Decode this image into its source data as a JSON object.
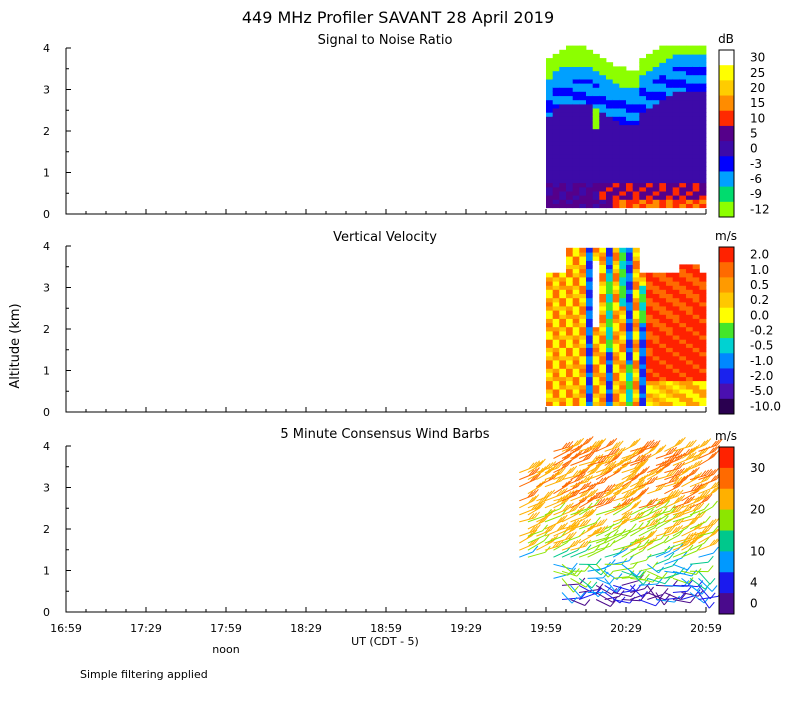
{
  "title": "449 MHz Profiler SAVANT 28 April 2019",
  "ylabel": "Altitude (km)",
  "xlabel": "UT  (CDT - 5)",
  "noon_label": "noon",
  "footer": "Simple filtering applied",
  "x_ticks": [
    "16:59",
    "17:29",
    "17:59",
    "18:29",
    "18:59",
    "19:29",
    "19:59",
    "20:29",
    "20:59"
  ],
  "chart_data": [
    {
      "type": "heatmap",
      "title": "Signal to Noise Ratio",
      "unit": "dB",
      "y_ticks": [
        "0",
        "1",
        "2",
        "3",
        "4"
      ],
      "ylim": [
        0,
        4
      ],
      "data_time_range": [
        "19:59",
        "20:59"
      ],
      "colorbar": {
        "labels": [
          "30",
          "25",
          "20",
          "15",
          "10",
          "5",
          "0",
          "-3",
          "-6",
          "-9",
          "-12"
        ],
        "colors": [
          "#ffffff",
          "#ffff00",
          "#ffcc00",
          "#ff8c00",
          "#ff2a00",
          "#55008a",
          "#3d0aa8",
          "#0000ff",
          "#00a0ff",
          "#00dc6e",
          "#8cff00"
        ]
      }
    },
    {
      "type": "heatmap",
      "title": "Vertical Velocity",
      "unit": "m/s",
      "y_ticks": [
        "0",
        "1",
        "2",
        "3",
        "4"
      ],
      "ylim": [
        0,
        4
      ],
      "data_time_range": [
        "19:59",
        "20:59"
      ],
      "colorbar": {
        "labels": [
          "2.0",
          "1.0",
          "0.5",
          "0.2",
          "0.0",
          "-0.2",
          "-0.5",
          "-1.0",
          "-2.0",
          "-5.0",
          "-10.0"
        ],
        "colors": [
          "#ff2200",
          "#ff6a00",
          "#ff9a00",
          "#ffc800",
          "#ffff00",
          "#44e62a",
          "#00d2d2",
          "#0088ff",
          "#1a22ee",
          "#4a0fb0",
          "#2a0050"
        ]
      }
    },
    {
      "type": "scatter",
      "title": "5 Minute Consensus Wind Barbs",
      "unit": "m/s",
      "y_ticks": [
        "0",
        "1",
        "2",
        "3",
        "4"
      ],
      "ylim": [
        0,
        4
      ],
      "data_time_range": [
        "19:49",
        "20:59"
      ],
      "colorbar": {
        "labels": [
          "30",
          "20",
          "10",
          "4",
          "0"
        ],
        "colors": [
          "#ff2200",
          "#ff6a00",
          "#ffb000",
          "#8ce600",
          "#00c88c",
          "#0099ff",
          "#1a1aee",
          "#4a0a8c"
        ]
      }
    }
  ]
}
